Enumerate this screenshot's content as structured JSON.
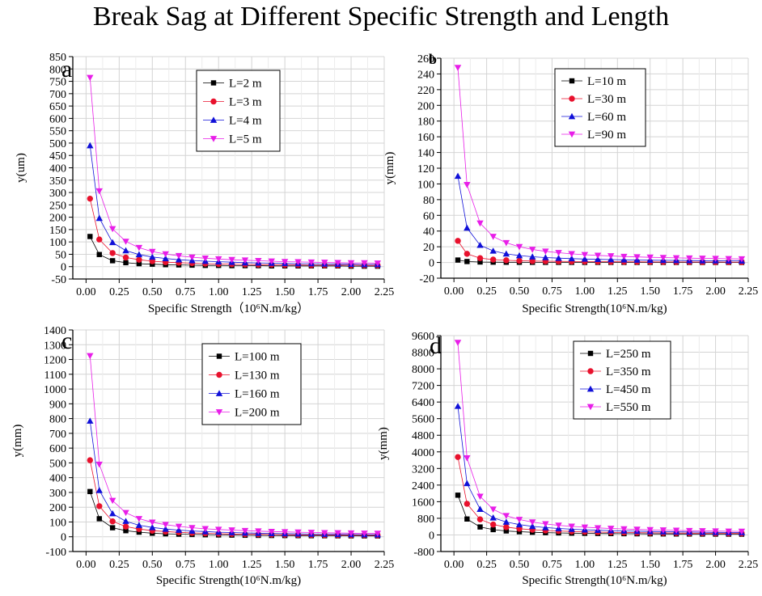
{
  "figure": {
    "title": "Break Sag at Different Specific Strength and Length"
  },
  "style": {
    "markers": [
      "square",
      "circle",
      "triangle-up",
      "triangle-down"
    ],
    "colors": [
      "#000000",
      "#e8112d",
      "#1010d8",
      "#e81ee8"
    ],
    "grid_color": "#d4d4d4"
  },
  "chart_data": [
    {
      "panel": "a",
      "type": "line",
      "title": "",
      "xlabel": "Specific Strength（10⁶N.m/kg）",
      "ylabel": "y(um)",
      "xlim": [
        -0.1,
        2.25
      ],
      "ylim": [
        -50,
        850
      ],
      "xticks": [
        0.0,
        0.25,
        0.5,
        0.75,
        1.0,
        1.25,
        1.5,
        1.75,
        2.0,
        2.25
      ],
      "xtick_labels": [
        "0.00",
        "0.25",
        "0.50",
        "0.75",
        "1.00",
        "1.25",
        "1.50",
        "1.75",
        "2.00",
        "2.25"
      ],
      "yticks": [
        -50,
        0,
        50,
        100,
        150,
        200,
        250,
        300,
        350,
        400,
        450,
        500,
        550,
        600,
        650,
        700,
        750,
        800,
        850
      ],
      "ytick_labels": [
        "-50",
        "0",
        "50",
        "100",
        "150",
        "200",
        "250",
        "300",
        "350",
        "400",
        "450",
        "500",
        "550",
        "600",
        "650",
        "700",
        "750",
        "800",
        "850"
      ],
      "x": [
        0.03,
        0.1,
        0.2,
        0.3,
        0.4,
        0.5,
        0.6,
        0.7,
        0.8,
        0.9,
        1.0,
        1.1,
        1.2,
        1.3,
        1.4,
        1.5,
        1.6,
        1.7,
        1.8,
        1.9,
        2.0,
        2.1,
        2.2
      ],
      "series": [
        {
          "name": "L=2 m",
          "values": [
            122,
            49,
            24,
            16,
            12,
            10,
            8,
            7,
            6,
            5,
            5,
            4,
            4,
            4,
            3,
            3,
            3,
            3,
            3,
            3,
            2,
            2,
            2
          ]
        },
        {
          "name": "L=3 m",
          "values": [
            275,
            110,
            55,
            37,
            28,
            22,
            18,
            16,
            14,
            12,
            11,
            10,
            9,
            8,
            8,
            7,
            7,
            6,
            6,
            6,
            6,
            5,
            5
          ]
        },
        {
          "name": "L=4 m",
          "values": [
            490,
            196,
            98,
            65,
            49,
            39,
            33,
            28,
            25,
            22,
            20,
            18,
            16,
            15,
            14,
            13,
            12,
            12,
            11,
            10,
            10,
            9,
            9
          ]
        },
        {
          "name": "L=5 m",
          "values": [
            765,
            306,
            153,
            102,
            77,
            61,
            51,
            44,
            38,
            34,
            31,
            28,
            26,
            24,
            22,
            20,
            19,
            18,
            17,
            16,
            15,
            15,
            14
          ]
        }
      ],
      "legend": {
        "position": "top-center"
      }
    },
    {
      "panel": "b",
      "type": "line",
      "title": "",
      "xlabel": "Specific Strength(10⁶N.m/kg)",
      "ylabel": "y(mm)",
      "xlim": [
        -0.1,
        2.25
      ],
      "ylim": [
        -20,
        260
      ],
      "xticks": [
        0.0,
        0.25,
        0.5,
        0.75,
        1.0,
        1.25,
        1.5,
        1.75,
        2.0,
        2.25
      ],
      "xtick_labels": [
        "0.00",
        "0.25",
        "0.50",
        "0.75",
        "1.00",
        "1.25",
        "1.50",
        "1.75",
        "2.00",
        "2.25"
      ],
      "yticks": [
        -20,
        0,
        20,
        40,
        60,
        80,
        100,
        120,
        140,
        160,
        180,
        200,
        220,
        240,
        260
      ],
      "ytick_labels": [
        "-20",
        "0",
        "20",
        "40",
        "60",
        "80",
        "100",
        "120",
        "140",
        "160",
        "180",
        "200",
        "220",
        "240",
        "260"
      ],
      "x": [
        0.03,
        0.1,
        0.2,
        0.3,
        0.4,
        0.5,
        0.6,
        0.7,
        0.8,
        0.9,
        1.0,
        1.1,
        1.2,
        1.3,
        1.4,
        1.5,
        1.6,
        1.7,
        1.8,
        1.9,
        2.0,
        2.1,
        2.2
      ],
      "series": [
        {
          "name": "L=10 m",
          "values": [
            3.1,
            1.2,
            0.6,
            0.4,
            0.3,
            0.25,
            0.2,
            0.18,
            0.15,
            0.14,
            0.12,
            0.11,
            0.1,
            0.1,
            0.09,
            0.08,
            0.08,
            0.07,
            0.07,
            0.06,
            0.06,
            0.06,
            0.06
          ]
        },
        {
          "name": "L=30 m",
          "values": [
            27.5,
            11,
            5.5,
            3.7,
            2.8,
            2.2,
            1.8,
            1.6,
            1.4,
            1.2,
            1.1,
            1.0,
            0.9,
            0.85,
            0.8,
            0.73,
            0.69,
            0.65,
            0.61,
            0.58,
            0.55,
            0.52,
            0.5
          ]
        },
        {
          "name": "L=60 m",
          "values": [
            110,
            44,
            22,
            14.7,
            11,
            8.8,
            7.3,
            6.3,
            5.5,
            4.9,
            4.4,
            4.0,
            3.7,
            3.4,
            3.1,
            2.9,
            2.75,
            2.6,
            2.45,
            2.3,
            2.2,
            2.1,
            2.0
          ]
        },
        {
          "name": "L=90 m",
          "values": [
            248,
            99,
            50,
            33,
            25,
            20,
            16.5,
            14.2,
            12.4,
            11,
            9.9,
            9.0,
            8.3,
            7.6,
            7.1,
            6.6,
            6.2,
            5.8,
            5.5,
            5.2,
            5.0,
            4.7,
            4.5
          ]
        }
      ],
      "legend": {
        "position": "top-center"
      }
    },
    {
      "panel": "c",
      "type": "line",
      "title": "",
      "xlabel": "Specific Strength(10⁶N.m/kg)",
      "ylabel": "y(mm)",
      "xlim": [
        -0.1,
        2.25
      ],
      "ylim": [
        -100,
        1400
      ],
      "xticks": [
        0.0,
        0.25,
        0.5,
        0.75,
        1.0,
        1.25,
        1.5,
        1.75,
        2.0,
        2.25
      ],
      "xtick_labels": [
        "0.00",
        "0.25",
        "0.50",
        "0.75",
        "1.00",
        "1.25",
        "1.50",
        "1.75",
        "2.00",
        "2.25"
      ],
      "yticks": [
        -100,
        0,
        100,
        200,
        300,
        400,
        500,
        600,
        700,
        800,
        900,
        1000,
        1100,
        1200,
        1300,
        1400
      ],
      "ytick_labels": [
        "-100",
        "0",
        "100",
        "200",
        "300",
        "400",
        "500",
        "600",
        "700",
        "800",
        "900",
        "1000",
        "1100",
        "1200",
        "1300",
        "1400"
      ],
      "x": [
        0.03,
        0.1,
        0.2,
        0.3,
        0.4,
        0.5,
        0.6,
        0.7,
        0.8,
        0.9,
        1.0,
        1.1,
        1.2,
        1.3,
        1.4,
        1.5,
        1.6,
        1.7,
        1.8,
        1.9,
        2.0,
        2.1,
        2.2
      ],
      "series": [
        {
          "name": "L=100 m",
          "values": [
            306,
            122,
            61,
            41,
            31,
            24,
            20,
            17.5,
            15.3,
            13.6,
            12.2,
            11.1,
            10.2,
            9.4,
            8.7,
            8.2,
            7.7,
            7.2,
            6.8,
            6.4,
            6.1,
            5.8,
            5.6
          ]
        },
        {
          "name": "L=130 m",
          "values": [
            518,
            207,
            104,
            69,
            52,
            41,
            35,
            30,
            26,
            23,
            21,
            19,
            17,
            16,
            15,
            14,
            13,
            12,
            11.5,
            10.9,
            10.4,
            9.9,
            9.4
          ]
        },
        {
          "name": "L=160 m",
          "values": [
            784,
            314,
            157,
            105,
            78,
            63,
            52,
            45,
            39,
            35,
            31,
            28.5,
            26,
            24,
            22.4,
            21,
            19.6,
            18.4,
            17.4,
            16.5,
            15.7,
            14.9,
            14.3
          ]
        },
        {
          "name": "L=200 m",
          "values": [
            1225,
            490,
            245,
            163,
            122,
            98,
            82,
            70,
            61,
            54,
            49,
            45,
            41,
            38,
            35,
            33,
            31,
            29,
            27,
            26,
            24.5,
            23.3,
            22.3
          ]
        }
      ],
      "legend": {
        "position": "top-right"
      }
    },
    {
      "panel": "d",
      "type": "line",
      "title": "",
      "xlabel": "Specific Strength(10⁶N.m/kg)",
      "ylabel": "y(mm)",
      "xlim": [
        -0.1,
        2.25
      ],
      "ylim": [
        -800,
        9600
      ],
      "xticks": [
        0.0,
        0.25,
        0.5,
        0.75,
        1.0,
        1.25,
        1.5,
        1.75,
        2.0,
        2.25
      ],
      "xtick_labels": [
        "0.00",
        "0.25",
        "0.50",
        "0.75",
        "1.00",
        "1.25",
        "1.50",
        "1.75",
        "2.00",
        "2.25"
      ],
      "yticks": [
        -800,
        0,
        800,
        1600,
        2400,
        3200,
        4000,
        4800,
        5600,
        6400,
        7200,
        8000,
        8800,
        9600
      ],
      "ytick_labels": [
        "-800",
        "0",
        "800",
        "1600",
        "2400",
        "3200",
        "4000",
        "4800",
        "5600",
        "6400",
        "7200",
        "8000",
        "8800",
        "9600"
      ],
      "x": [
        0.03,
        0.1,
        0.2,
        0.3,
        0.4,
        0.5,
        0.6,
        0.7,
        0.8,
        0.9,
        1.0,
        1.1,
        1.2,
        1.3,
        1.4,
        1.5,
        1.6,
        1.7,
        1.8,
        1.9,
        2.0,
        2.1,
        2.2
      ],
      "series": [
        {
          "name": "L=250 m",
          "values": [
            1914,
            766,
            383,
            255,
            191,
            153,
            128,
            109,
            96,
            85,
            77,
            70,
            64,
            59,
            55,
            51,
            48,
            45,
            43,
            40,
            38,
            36,
            35
          ]
        },
        {
          "name": "L=350 m",
          "values": [
            3751,
            1500,
            750,
            500,
            375,
            300,
            250,
            214,
            188,
            167,
            150,
            136,
            125,
            115,
            107,
            100,
            94,
            88,
            83,
            79,
            75,
            71,
            68
          ]
        },
        {
          "name": "L=450 m",
          "values": [
            6201,
            2480,
            1240,
            827,
            620,
            496,
            413,
            354,
            310,
            276,
            248,
            225,
            207,
            191,
            177,
            165,
            155,
            146,
            138,
            131,
            124,
            118,
            113
          ]
        },
        {
          "name": "L=550 m",
          "values": [
            9263,
            3705,
            1853,
            1235,
            926,
            741,
            618,
            529,
            463,
            412,
            371,
            337,
            309,
            285,
            265,
            247,
            232,
            218,
            206,
            195,
            185,
            176,
            168
          ]
        }
      ],
      "legend": {
        "position": "top-center"
      }
    }
  ]
}
